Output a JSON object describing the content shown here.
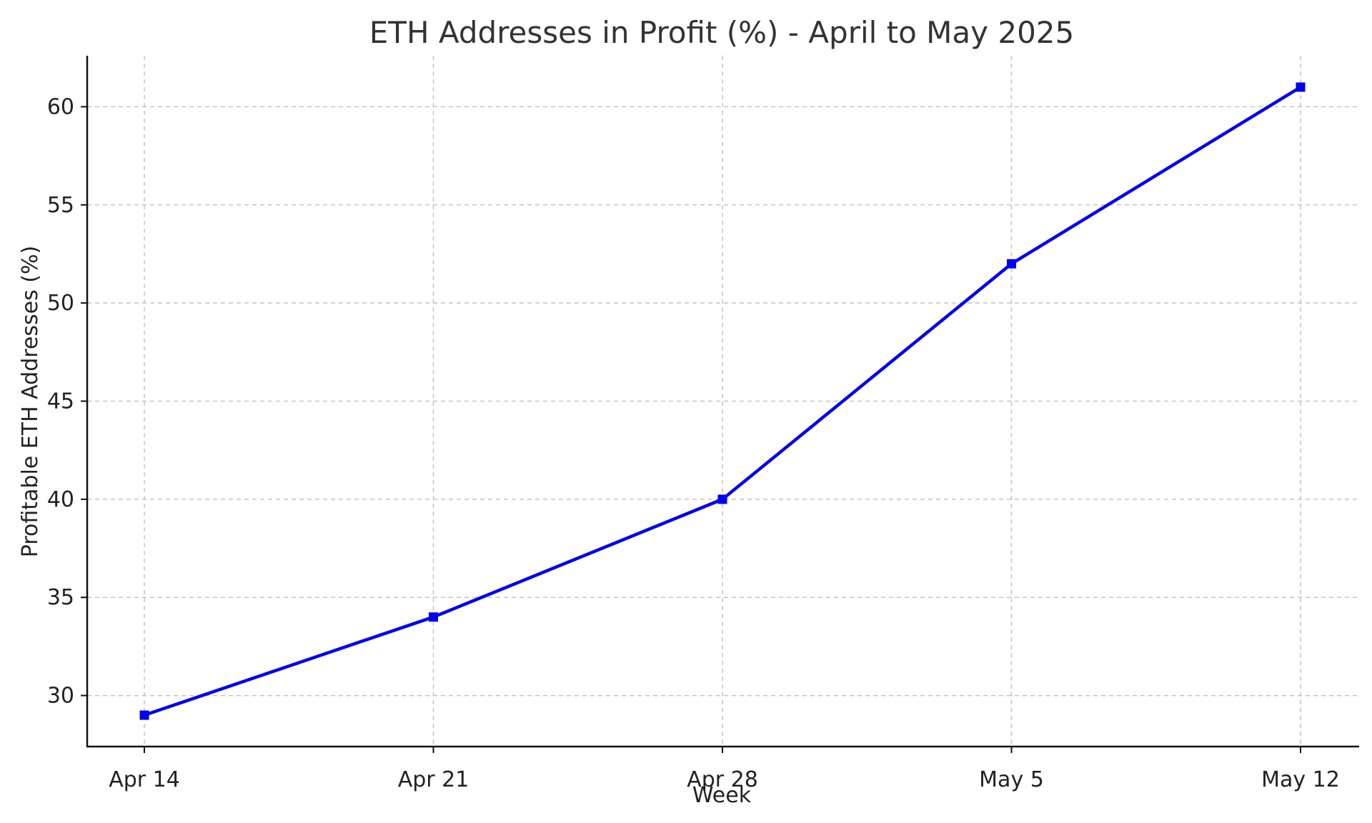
{
  "chart_data": {
    "type": "line",
    "title": "ETH Addresses in Profit (%) - April to May 2025",
    "xlabel": "Week",
    "ylabel": "Profitable ETH Addresses (%)",
    "categories": [
      "Apr 14",
      "Apr 21",
      "Apr 28",
      "May 5",
      "May 12"
    ],
    "series": [
      {
        "values": [
          29,
          34,
          40,
          52,
          61
        ],
        "color": "#0000ee",
        "marker": "square"
      }
    ],
    "ylim": [
      27.4,
      62.6
    ],
    "yticks": [
      30,
      35,
      40,
      45,
      50,
      55,
      60
    ],
    "grid": true
  }
}
